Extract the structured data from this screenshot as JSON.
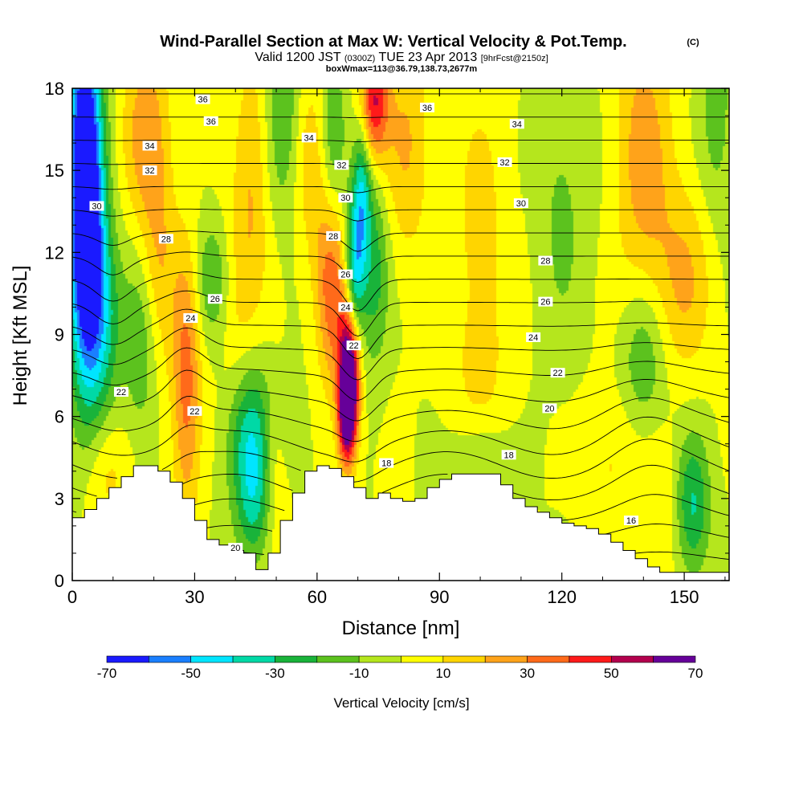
{
  "chart_data": {
    "type": "heatmap",
    "title": "Wind-Parallel Section at Max W: Vertical Velocity & Pot.Temp.",
    "title_suffix": "(C)",
    "subtitle": {
      "valid": "Valid 1200 JST",
      "utc": "(0300Z)",
      "date": "TUE 23 Apr 2013",
      "fcst": "[9hrFcst@2150z]"
    },
    "subtitle2": "boxWmax=113@36.79,138.73,2677m",
    "xlabel": "Distance [nm]",
    "ylabel": "Height [Kft MSL]",
    "xlim": [
      0,
      161
    ],
    "ylim": [
      0,
      18
    ],
    "x_ticks": [
      0,
      30,
      60,
      90,
      120,
      150
    ],
    "y_ticks": [
      0,
      3,
      6,
      9,
      12,
      15,
      18
    ],
    "colorbar": {
      "label": "Vertical Velocity [cm/s]",
      "ticks": [
        -70,
        -50,
        -30,
        -10,
        10,
        30,
        50,
        70
      ],
      "levels": [
        -70,
        -60,
        -50,
        -40,
        -30,
        -20,
        -10,
        0,
        10,
        20,
        30,
        40,
        50,
        60,
        70
      ],
      "colors": [
        "#1a1aff",
        "#1a7fff",
        "#00e5ff",
        "#00d9a6",
        "#19b33a",
        "#5cc21e",
        "#b5e61d",
        "#ffff00",
        "#ffd500",
        "#ffa31a",
        "#ff6a1a",
        "#ff1a1a",
        "#b3004d",
        "#660099"
      ]
    },
    "terrain_profile": {
      "x": [
        0,
        3,
        6,
        9,
        12,
        15,
        18,
        21,
        24,
        27,
        30,
        33,
        36,
        39,
        42,
        45,
        48,
        51,
        54,
        57,
        60,
        63,
        66,
        69,
        72,
        75,
        78,
        81,
        84,
        87,
        90,
        93,
        96,
        99,
        102,
        105,
        108,
        111,
        114,
        117,
        120,
        123,
        126,
        129,
        132,
        135,
        138,
        141,
        144,
        147,
        150,
        153,
        156,
        159,
        161
      ],
      "z": [
        2.3,
        2.6,
        3.0,
        3.4,
        3.8,
        4.2,
        4.2,
        4.0,
        3.6,
        3.0,
        2.2,
        1.5,
        1.3,
        1.1,
        1.0,
        0.4,
        1.0,
        2.2,
        3.2,
        4.0,
        4.2,
        4.1,
        3.8,
        3.4,
        3.0,
        3.2,
        3.0,
        2.9,
        3.0,
        3.4,
        3.7,
        3.9,
        3.9,
        3.9,
        3.9,
        3.5,
        3.0,
        2.7,
        2.5,
        2.3,
        2.1,
        2.0,
        1.9,
        1.7,
        1.4,
        1.1,
        0.8,
        0.5,
        0.3,
        0.3,
        0.3,
        0.3,
        0.3,
        0.3,
        0.3
      ]
    },
    "vertical_velocity_features": [
      {
        "x": 3,
        "y": 15.5,
        "sx": 3,
        "sy": 5,
        "w": -70
      },
      {
        "x": 4,
        "y": 11.5,
        "sx": 3,
        "sy": 3.5,
        "w": -40
      },
      {
        "x": 8,
        "y": 9.5,
        "sx": 3,
        "sy": 2.5,
        "w": -25
      },
      {
        "x": 18,
        "y": 16.5,
        "sx": 4,
        "sy": 2.5,
        "w": 25
      },
      {
        "x": 21,
        "y": 11.5,
        "sx": 3,
        "sy": 3,
        "w": 20
      },
      {
        "x": 28,
        "y": 7.2,
        "sx": 2.5,
        "sy": 3.5,
        "w": 35
      },
      {
        "x": 17,
        "y": 8.5,
        "sx": 3,
        "sy": 2.5,
        "w": -20
      },
      {
        "x": 34,
        "y": 11.0,
        "sx": 3,
        "sy": 1.5,
        "w": -20
      },
      {
        "x": 44,
        "y": 5.0,
        "sx": 4,
        "sy": 2.0,
        "w": -40
      },
      {
        "x": 45,
        "y": 2.5,
        "sx": 3,
        "sy": 1.5,
        "w": -20
      },
      {
        "x": 50,
        "y": 4.0,
        "sx": 3,
        "sy": 2.0,
        "w": 20
      },
      {
        "x": 54,
        "y": 5.0,
        "sx": 2.5,
        "sy": 1.5,
        "w": -15
      },
      {
        "x": 44,
        "y": 14.5,
        "sx": 3,
        "sy": 3.5,
        "w": 20
      },
      {
        "x": 40,
        "y": 10.0,
        "sx": 3,
        "sy": 2.5,
        "w": 10
      },
      {
        "x": 52,
        "y": 17.0,
        "sx": 3,
        "sy": 2.5,
        "w": -20
      },
      {
        "x": 58,
        "y": 15.5,
        "sx": 3,
        "sy": 2.5,
        "w": 15
      },
      {
        "x": 63,
        "y": 11.5,
        "sx": 3,
        "sy": 2.0,
        "w": 25
      },
      {
        "x": 64,
        "y": 9.0,
        "sx": 2.5,
        "sy": 2.0,
        "w": 20
      },
      {
        "x": 68,
        "y": 7.5,
        "sx": 1.7,
        "sy": 1.8,
        "w": 90
      },
      {
        "x": 67,
        "y": 5.8,
        "sx": 1.5,
        "sy": 1.2,
        "w": 40
      },
      {
        "x": 69,
        "y": 11.0,
        "sx": 1.6,
        "sy": 2.0,
        "w": -45
      },
      {
        "x": 71,
        "y": 14.0,
        "sx": 1.5,
        "sy": 2.0,
        "w": -35
      },
      {
        "x": 74,
        "y": 11.5,
        "sx": 2.5,
        "sy": 2.5,
        "w": -25
      },
      {
        "x": 74,
        "y": 17.5,
        "sx": 2.5,
        "sy": 1.5,
        "w": 50
      },
      {
        "x": 64,
        "y": 16.5,
        "sx": 2.0,
        "sy": 2.0,
        "w": -20
      },
      {
        "x": 82,
        "y": 16.0,
        "sx": 4,
        "sy": 3.0,
        "w": 20
      },
      {
        "x": 100,
        "y": 13.0,
        "sx": 6,
        "sy": 4.0,
        "w": 12
      },
      {
        "x": 100,
        "y": 7.0,
        "sx": 6,
        "sy": 2.5,
        "w": 8
      },
      {
        "x": 120,
        "y": 14.0,
        "sx": 5,
        "sy": 4.0,
        "w": -12
      },
      {
        "x": 140,
        "y": 15.5,
        "sx": 5,
        "sy": 4.0,
        "w": 25
      },
      {
        "x": 150,
        "y": 11.0,
        "sx": 5,
        "sy": 2.5,
        "w": 20
      },
      {
        "x": 140,
        "y": 8.0,
        "sx": 4,
        "sy": 2.0,
        "w": -22
      },
      {
        "x": 152,
        "y": 2.7,
        "sx": 3,
        "sy": 1.8,
        "w": -32
      },
      {
        "x": 144,
        "y": 2.5,
        "sx": 4,
        "sy": 2.0,
        "w": 10
      },
      {
        "x": 132,
        "y": 4.5,
        "sx": 5,
        "sy": 2.0,
        "w": 12
      },
      {
        "x": 100,
        "y": 4.5,
        "sx": 5,
        "sy": 1.0,
        "w": -15
      },
      {
        "x": 8,
        "y": 4.0,
        "sx": 4,
        "sy": 1.5,
        "w": 15
      },
      {
        "x": 158,
        "y": 17.0,
        "sx": 3,
        "sy": 3.0,
        "w": -15
      }
    ],
    "isentrope_levels": [
      14,
      15,
      16,
      17,
      18,
      19,
      20,
      21,
      22,
      23,
      24,
      25,
      26,
      27,
      28,
      29,
      30,
      31,
      32,
      33,
      34,
      35,
      36,
      37
    ],
    "isentrope_labels": [
      {
        "x": 12,
        "y": 6.9,
        "t": "22"
      },
      {
        "x": 30,
        "y": 6.2,
        "t": "22"
      },
      {
        "x": 29,
        "y": 9.6,
        "t": "24"
      },
      {
        "x": 35,
        "y": 10.3,
        "t": "26"
      },
      {
        "x": 23,
        "y": 12.5,
        "t": "28"
      },
      {
        "x": 6,
        "y": 13.7,
        "t": "30"
      },
      {
        "x": 19,
        "y": 15.0,
        "t": "32"
      },
      {
        "x": 19,
        "y": 15.9,
        "t": "34"
      },
      {
        "x": 34,
        "y": 16.8,
        "t": "36"
      },
      {
        "x": 32,
        "y": 17.6,
        "t": "36"
      },
      {
        "x": 40,
        "y": 1.2,
        "t": "20"
      },
      {
        "x": 58,
        "y": 16.2,
        "t": "34"
      },
      {
        "x": 66,
        "y": 15.2,
        "t": "32"
      },
      {
        "x": 67,
        "y": 14.0,
        "t": "30"
      },
      {
        "x": 64,
        "y": 12.6,
        "t": "28"
      },
      {
        "x": 67,
        "y": 11.2,
        "t": "26"
      },
      {
        "x": 67,
        "y": 10.0,
        "t": "24"
      },
      {
        "x": 69,
        "y": 8.6,
        "t": "22"
      },
      {
        "x": 77,
        "y": 4.3,
        "t": "18"
      },
      {
        "x": 87,
        "y": 17.3,
        "t": "36"
      },
      {
        "x": 109,
        "y": 16.7,
        "t": "34"
      },
      {
        "x": 106,
        "y": 15.3,
        "t": "32"
      },
      {
        "x": 110,
        "y": 13.8,
        "t": "30"
      },
      {
        "x": 116,
        "y": 11.7,
        "t": "28"
      },
      {
        "x": 116,
        "y": 10.2,
        "t": "26"
      },
      {
        "x": 113,
        "y": 8.9,
        "t": "24"
      },
      {
        "x": 119,
        "y": 7.6,
        "t": "22"
      },
      {
        "x": 117,
        "y": 6.3,
        "t": "20"
      },
      {
        "x": 107,
        "y": 4.6,
        "t": "18"
      },
      {
        "x": 137,
        "y": 2.2,
        "t": "16"
      }
    ]
  }
}
